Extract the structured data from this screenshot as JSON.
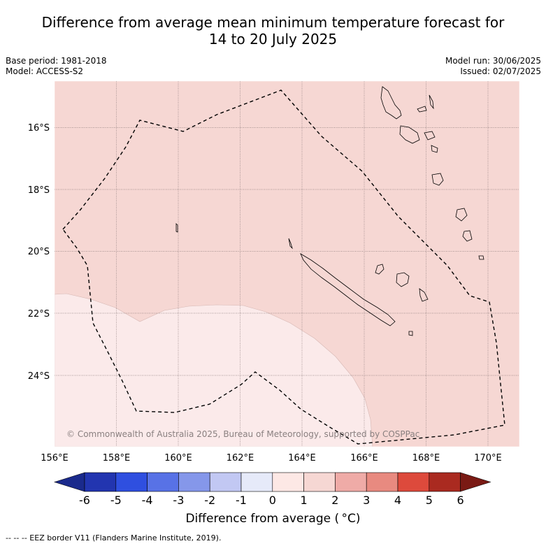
{
  "title_line1": "Difference from average mean minimum temperature forecast for",
  "title_line2": "14 to 20 July 2025",
  "base_period": "Base period: 1981-2018",
  "model": "Model: ACCESS-S2",
  "model_run": "Model run: 30/06/2025",
  "issued": "Issued: 02/07/2025",
  "copyright": "© Commonwealth of Australia 2025, Bureau of Meteorology, supported by COSPPac",
  "footnote": "-- -- -- EEZ border V11 (Flanders Marine Institute, 2019).",
  "colorbar": {
    "label": "Difference from average ( °C)",
    "ticks": [
      "-6",
      "-5",
      "-4",
      "-3",
      "-2",
      "-1",
      "0",
      "1",
      "2",
      "3",
      "4",
      "5",
      "6"
    ],
    "colors": [
      "#1a2a8c",
      "#2235b0",
      "#2f4fe0",
      "#5872e6",
      "#8597ea",
      "#c2c8f3",
      "#e6eaf9",
      "#fde8e5",
      "#f6d7d3",
      "#efaba7",
      "#e88a80",
      "#dd4a3c",
      "#aa2a20",
      "#7a1a14"
    ]
  },
  "axes": {
    "lon_ticks": [
      "156°E",
      "158°E",
      "160°E",
      "162°E",
      "164°E",
      "166°E",
      "168°E",
      "170°E"
    ],
    "lat_ticks": [
      "16°S",
      "18°S",
      "20°S",
      "22°S",
      "24°S"
    ]
  },
  "map_fill": {
    "main_category": "1 to 2 °C",
    "main_color": "#f6d7d3",
    "secondary_category": "0 to 1 °C",
    "secondary_color": "#fbeaea"
  }
}
